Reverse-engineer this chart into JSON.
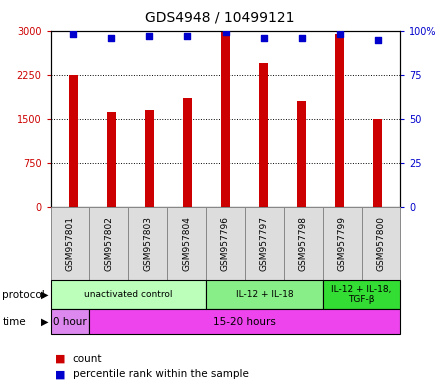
{
  "title": "GDS4948 / 10499121",
  "samples": [
    "GSM957801",
    "GSM957802",
    "GSM957803",
    "GSM957804",
    "GSM957796",
    "GSM957797",
    "GSM957798",
    "GSM957799",
    "GSM957800"
  ],
  "counts": [
    2250,
    1625,
    1650,
    1850,
    3000,
    2450,
    1800,
    2950,
    1500
  ],
  "percentile_ranks": [
    98,
    96,
    97,
    97,
    99,
    96,
    96,
    98,
    95
  ],
  "bar_color": "#cc0000",
  "dot_color": "#0000cc",
  "ylim_left": [
    0,
    3000
  ],
  "ylim_right": [
    0,
    100
  ],
  "yticks_left": [
    0,
    750,
    1500,
    2250,
    3000
  ],
  "ytick_labels_left": [
    "0",
    "750",
    "1500",
    "2250",
    "3000"
  ],
  "yticks_right": [
    0,
    25,
    50,
    75,
    100
  ],
  "ytick_labels_right": [
    "0",
    "25",
    "50",
    "75",
    "100%"
  ],
  "protocol_groups": [
    {
      "label": "unactivated control",
      "start": 0,
      "end": 4,
      "color": "#bbffbb"
    },
    {
      "label": "IL-12 + IL-18",
      "start": 4,
      "end": 7,
      "color": "#88ee88"
    },
    {
      "label": "IL-12 + IL-18,\nTGF-β",
      "start": 7,
      "end": 9,
      "color": "#33dd33"
    }
  ],
  "time_groups": [
    {
      "label": "0 hour",
      "start": 0,
      "end": 1,
      "color": "#dd88ee"
    },
    {
      "label": "15-20 hours",
      "start": 1,
      "end": 9,
      "color": "#ee44ee"
    }
  ],
  "legend_count_color": "#cc0000",
  "legend_dot_color": "#0000cc",
  "axis_color_left": "#cc0000",
  "axis_color_right": "#0000cc",
  "title_fontsize": 10,
  "tick_fontsize": 7,
  "bar_width": 0.25,
  "label_bg_color": "#dddddd",
  "label_border_color": "#888888"
}
